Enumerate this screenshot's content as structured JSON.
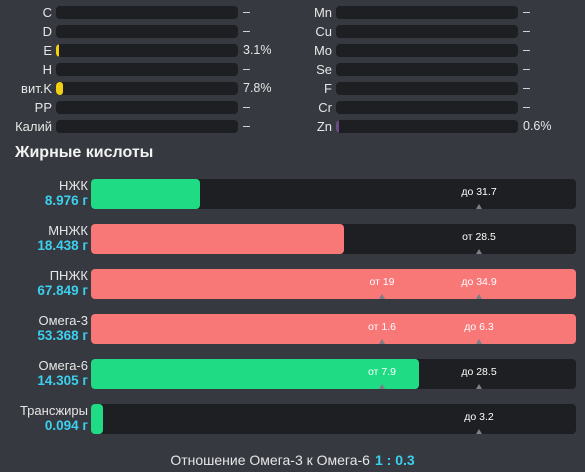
{
  "colors": {
    "background": "#363a40",
    "bar_track": "#1d1f22",
    "green": "#1edb84",
    "red": "#f87777",
    "yellow": "#f2cf0f",
    "purple": "#6a4c82",
    "accent_blue": "#3ccfee"
  },
  "micros_left": [
    {
      "label": "C",
      "value": "–",
      "fill": 0
    },
    {
      "label": "D",
      "value": "–",
      "fill": 0
    },
    {
      "label": "E",
      "value": "3.1%",
      "fill": 0.031,
      "color": "#f2cf0f"
    },
    {
      "label": "H",
      "value": "–",
      "fill": 0
    },
    {
      "label": "вит.K",
      "value": "7.8%",
      "fill": 0.078,
      "color": "#f2cf0f"
    },
    {
      "label": "PP",
      "value": "–",
      "fill": 0
    },
    {
      "label": "Калий",
      "value": "–",
      "fill": 0
    }
  ],
  "micros_right": [
    {
      "label": "Mn",
      "value": "–",
      "fill": 0
    },
    {
      "label": "Cu",
      "value": "–",
      "fill": 0
    },
    {
      "label": "Mo",
      "value": "–",
      "fill": 0
    },
    {
      "label": "Se",
      "value": "–",
      "fill": 0
    },
    {
      "label": "F",
      "value": "–",
      "fill": 0
    },
    {
      "label": "Cr",
      "value": "–",
      "fill": 0
    },
    {
      "label": "Zn",
      "value": "0.6%",
      "fill": 0.006,
      "color": "#6a4c82"
    }
  ],
  "section_title": "Жирные кислоты",
  "fatty_acids": [
    {
      "name": "НЖК",
      "amount": "8.976 г",
      "fill": 0.225,
      "color": "#1edb84",
      "markers": [
        {
          "text": "до 31.7",
          "pos": 0.8
        }
      ]
    },
    {
      "name": "МНЖК",
      "amount": "18.438 г",
      "fill": 0.522,
      "color": "#f87777",
      "markers": [
        {
          "text": "от 28.5",
          "pos": 0.8
        }
      ]
    },
    {
      "name": "ПНЖК",
      "amount": "67.849 г",
      "fill": 1.0,
      "color": "#f87777",
      "markers": [
        {
          "text": "от 19",
          "pos": 0.6
        },
        {
          "text": "до 34.9",
          "pos": 0.8
        }
      ]
    },
    {
      "name": "Омега-3",
      "amount": "53.368 г",
      "fill": 1.0,
      "color": "#f87777",
      "markers": [
        {
          "text": "от 1.6",
          "pos": 0.6
        },
        {
          "text": "до 6.3",
          "pos": 0.8
        }
      ]
    },
    {
      "name": "Омега-6",
      "amount": "14.305 г",
      "fill": 0.677,
      "color": "#1edb84",
      "markers": [
        {
          "text": "от 7.9",
          "pos": 0.6
        },
        {
          "text": "до 28.5",
          "pos": 0.8
        }
      ]
    },
    {
      "name": "Трансжиры",
      "amount": "0.094 г",
      "fill": 0.025,
      "color": "#1edb84",
      "markers": [
        {
          "text": "до 3.2",
          "pos": 0.8
        }
      ]
    }
  ],
  "ratio": {
    "label": "Отношение Омега-3 к Омега-6",
    "value": "1 : 0.3"
  }
}
